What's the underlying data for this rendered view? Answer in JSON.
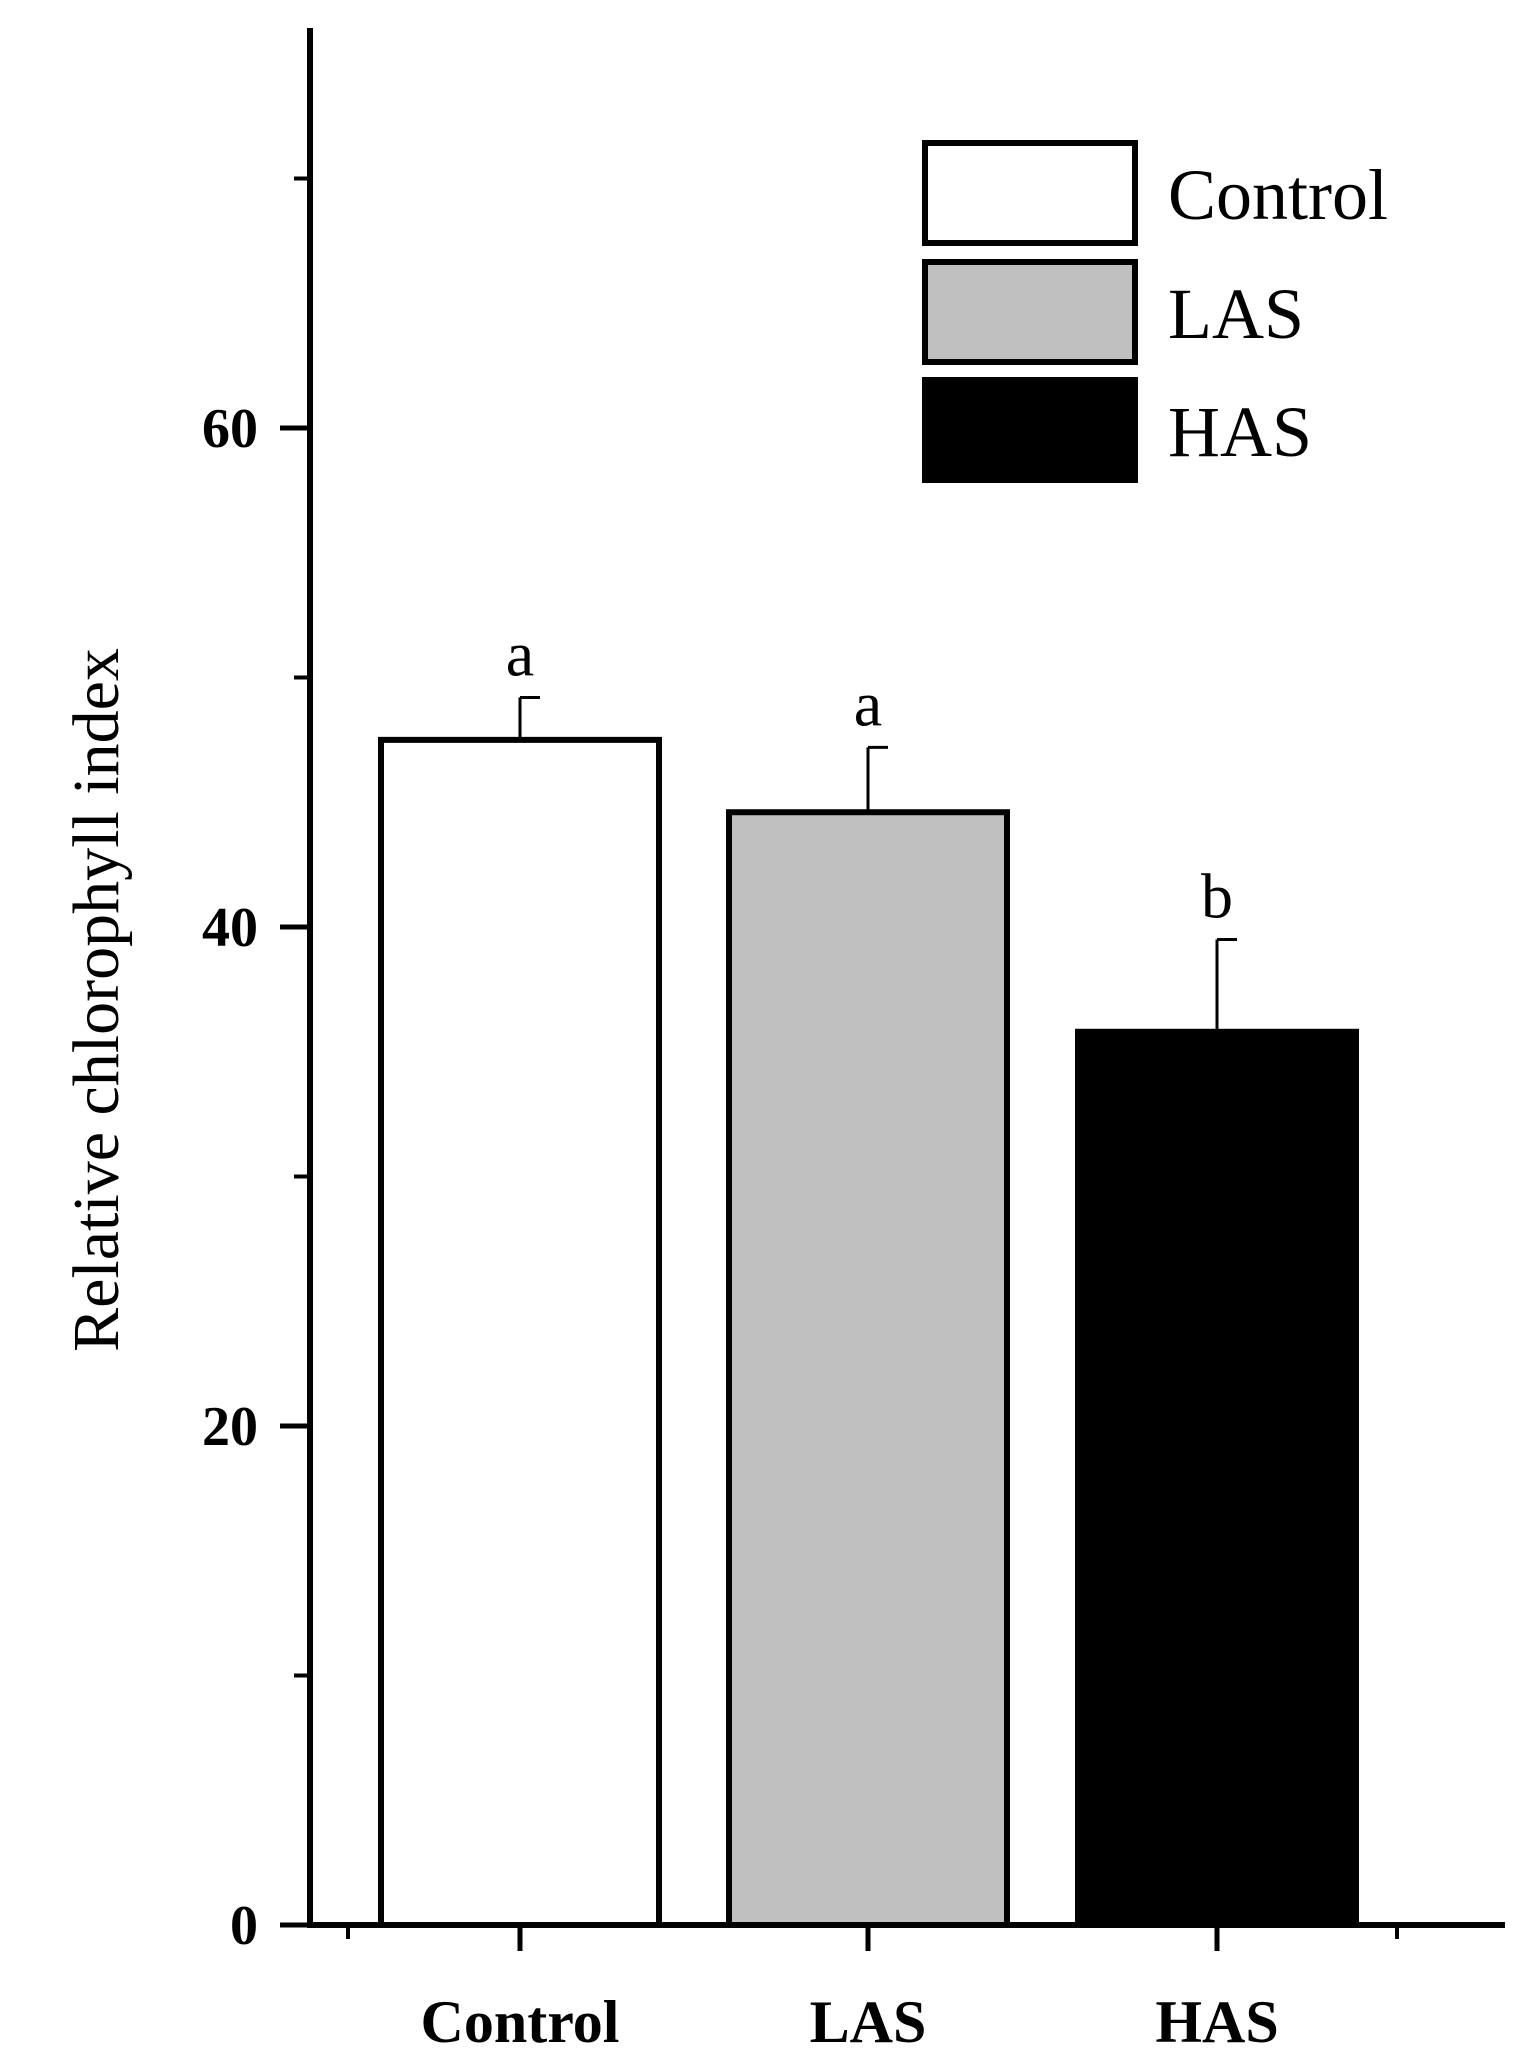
{
  "chart_data": {
    "type": "bar",
    "title": "",
    "xlabel": "",
    "ylabel": "Relative chlorophyll index",
    "ylim": [
      0,
      76
    ],
    "yticks": [
      0,
      20,
      40,
      60
    ],
    "y_minor_ticks": [
      10,
      30,
      50,
      70
    ],
    "grid": false,
    "legend_placement": "top-right",
    "categories": [
      "Control",
      "LAS",
      "HAS"
    ],
    "values": [
      47.5,
      44.6,
      35.8
    ],
    "errors": [
      1.7,
      2.6,
      3.7
    ],
    "significance": [
      "a",
      "a",
      "b"
    ],
    "legend": [
      "Control",
      "LAS",
      "HAS"
    ],
    "colors": [
      "#ffffff",
      "#c0c0c0",
      "#000000"
    ]
  }
}
